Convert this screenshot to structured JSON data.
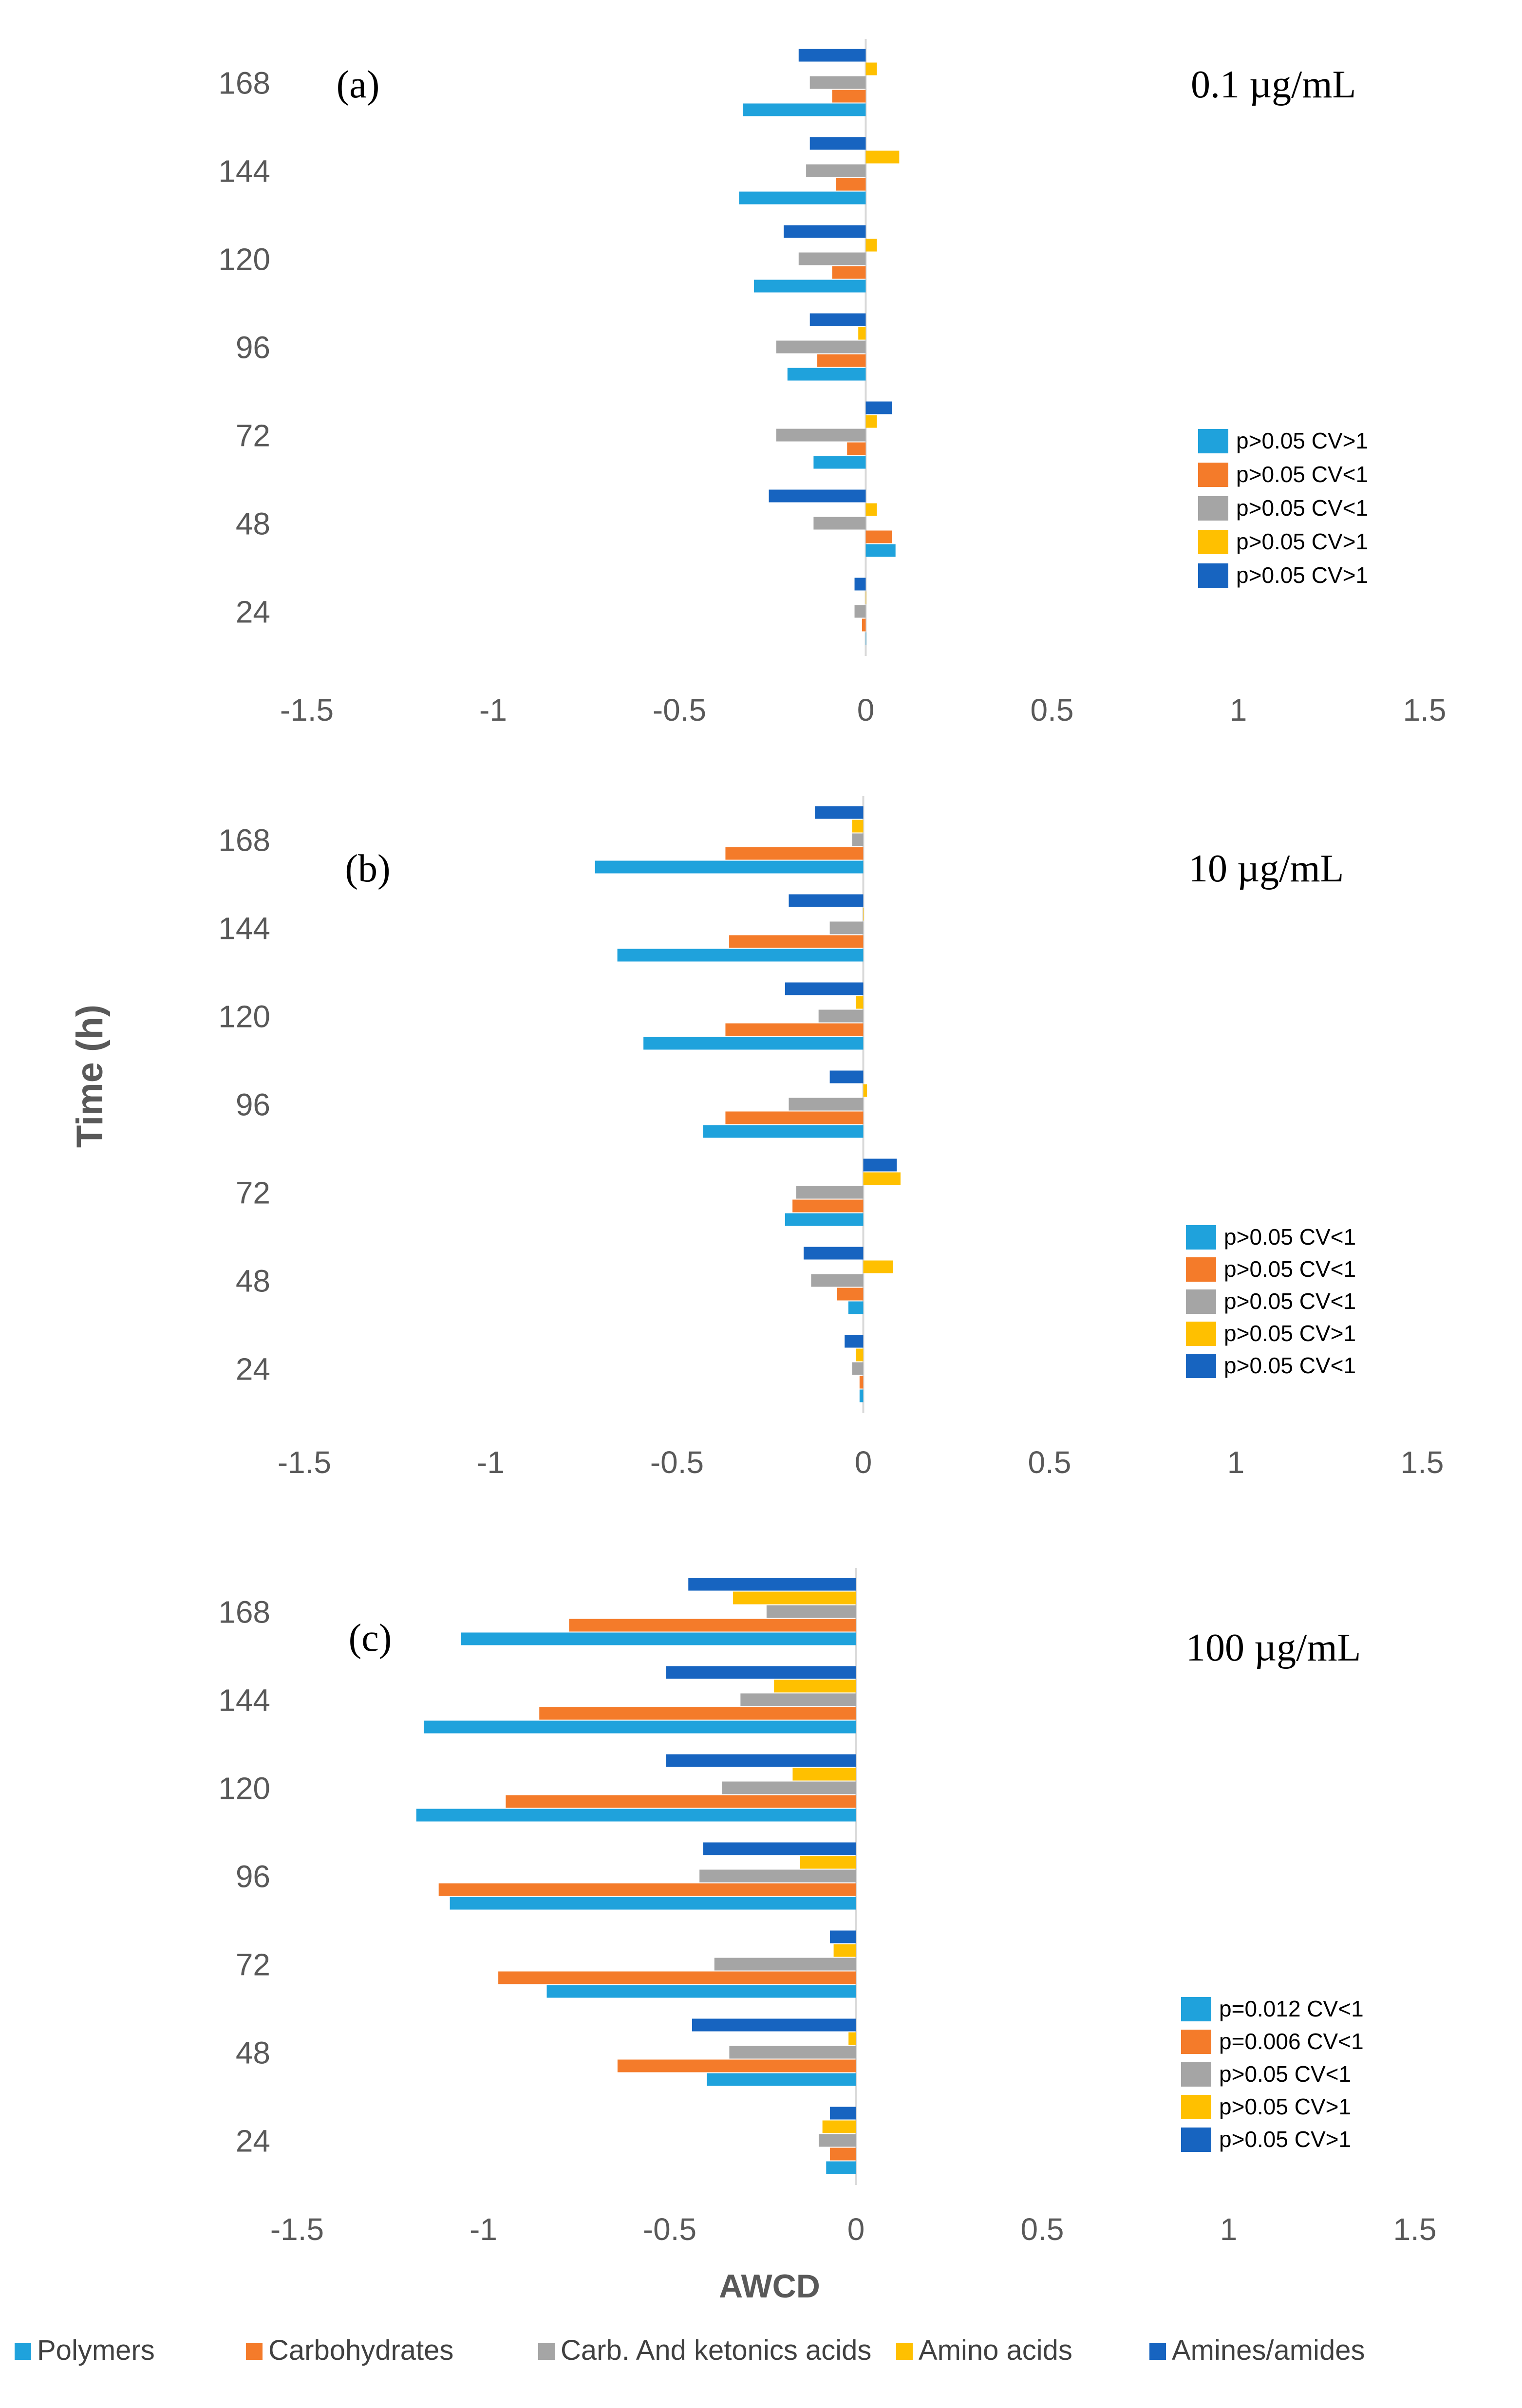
{
  "axis": {
    "ylabel": "Time (h)",
    "xlabel": "AWCD"
  },
  "colors": {
    "Polymers": "#1fa2dc",
    "Carbohydrates": "#f47b2a",
    "Carb. And ketonics acids": "#a5a5a5",
    "Amino acids": "#ffc000",
    "Amines/amides": "#1764c0"
  },
  "legend": [
    "Polymers",
    "Carbohydrates",
    "Carb. And ketonics acids",
    "Amino acids",
    "Amines/amides"
  ],
  "chart_data": [
    {
      "type": "bar",
      "orientation": "horizontal",
      "panel_label": "(a)",
      "concentration": "0.1 µg/mL",
      "xlim": [
        -1.5,
        1.5
      ],
      "xticks": [
        "-1.5",
        "-1",
        "-0.5",
        "0",
        "0.5",
        "1",
        "1.5"
      ],
      "categories": [
        "24",
        "48",
        "72",
        "96",
        "120",
        "144",
        "168"
      ],
      "series": [
        {
          "name": "Polymers",
          "values": [
            0.0,
            0.08,
            -0.14,
            -0.21,
            -0.3,
            -0.34,
            -0.33
          ]
        },
        {
          "name": "Carbohydrates",
          "values": [
            -0.01,
            0.07,
            -0.05,
            -0.13,
            -0.09,
            -0.08,
            -0.09
          ]
        },
        {
          "name": "Carb. And ketonics acids",
          "values": [
            -0.03,
            -0.14,
            -0.24,
            -0.24,
            -0.18,
            -0.16,
            -0.15
          ]
        },
        {
          "name": "Amino acids",
          "values": [
            0.0,
            0.03,
            0.03,
            -0.02,
            0.03,
            0.09,
            0.03
          ]
        },
        {
          "name": "Amines/amides",
          "values": [
            -0.03,
            -0.26,
            0.07,
            -0.15,
            -0.22,
            -0.15,
            -0.18
          ]
        }
      ],
      "significance": [
        "p>0.05 CV>1",
        "p>0.05 CV<1",
        "p>0.05 CV<1",
        "p>0.05 CV>1",
        "p>0.05 CV>1"
      ]
    },
    {
      "type": "bar",
      "orientation": "horizontal",
      "panel_label": "(b)",
      "concentration": "10 µg/mL",
      "xlim": [
        -1.5,
        1.5
      ],
      "xticks": [
        "-1.5",
        "-1",
        "-0.5",
        "0",
        "0.5",
        "1",
        "1.5"
      ],
      "categories": [
        "24",
        "48",
        "72",
        "96",
        "120",
        "144",
        "168"
      ],
      "series": [
        {
          "name": "Polymers",
          "values": [
            -0.01,
            -0.04,
            -0.21,
            -0.43,
            -0.59,
            -0.66,
            -0.72
          ]
        },
        {
          "name": "Carbohydrates",
          "values": [
            -0.01,
            -0.07,
            -0.19,
            -0.37,
            -0.37,
            -0.36,
            -0.37
          ]
        },
        {
          "name": "Carb. And ketonics acids",
          "values": [
            -0.03,
            -0.14,
            -0.18,
            -0.2,
            -0.12,
            -0.09,
            -0.03
          ]
        },
        {
          "name": "Amino acids",
          "values": [
            -0.02,
            0.08,
            0.1,
            0.01,
            -0.02,
            0.0,
            -0.03
          ]
        },
        {
          "name": "Amines/amides",
          "values": [
            -0.05,
            -0.16,
            0.09,
            -0.09,
            -0.21,
            -0.2,
            -0.13
          ]
        }
      ],
      "significance": [
        "p>0.05 CV<1",
        "p>0.05 CV<1",
        "p>0.05 CV<1",
        "p>0.05 CV>1",
        "p>0.05 CV<1"
      ]
    },
    {
      "type": "bar",
      "orientation": "horizontal",
      "panel_label": "(c)",
      "concentration": "100 µg/mL",
      "xlim": [
        -1.5,
        1.5
      ],
      "xticks": [
        "-1.5",
        "-1",
        "-0.5",
        "0",
        "0.5",
        "1",
        "1.5"
      ],
      "categories": [
        "24",
        "48",
        "72",
        "96",
        "120",
        "144",
        "168"
      ],
      "series": [
        {
          "name": "Polymers",
          "values": [
            -0.08,
            -0.4,
            -0.83,
            -1.09,
            -1.18,
            -1.16,
            -1.06
          ]
        },
        {
          "name": "Carbohydrates",
          "values": [
            -0.07,
            -0.64,
            -0.96,
            -1.12,
            -0.94,
            -0.85,
            -0.77
          ]
        },
        {
          "name": "Carb. And ketonics acids",
          "values": [
            -0.1,
            -0.34,
            -0.38,
            -0.42,
            -0.36,
            -0.31,
            -0.24
          ]
        },
        {
          "name": "Amino acids",
          "values": [
            -0.09,
            -0.02,
            -0.06,
            -0.15,
            -0.17,
            -0.22,
            -0.33
          ]
        },
        {
          "name": "Amines/amides",
          "values": [
            -0.07,
            -0.44,
            -0.07,
            -0.41,
            -0.51,
            -0.51,
            -0.45
          ]
        }
      ],
      "significance": [
        "p=0.012 CV<1",
        "p=0.006 CV<1",
        "p>0.05 CV<1",
        "p>0.05 CV>1",
        "p>0.05 CV>1"
      ]
    }
  ]
}
